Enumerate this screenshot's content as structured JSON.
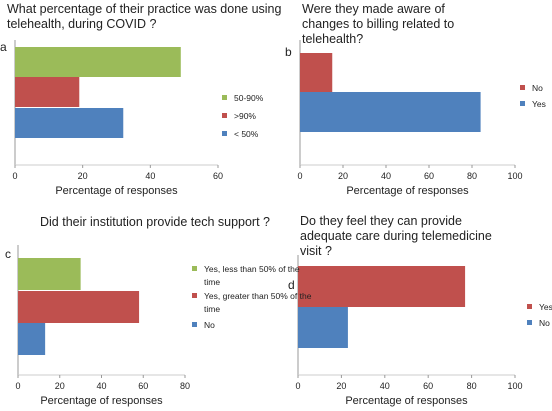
{
  "chart_data": [
    {
      "type": "bar",
      "orientation": "horizontal",
      "panel_label": "a",
      "title": "What percentage of their practice was done using telehealth, during COVID ?",
      "categories": [
        "50-90%",
        ">90%",
        "< 50%"
      ],
      "values": [
        49,
        19,
        32
      ],
      "colors": [
        "#9bbb59",
        "#c0504d",
        "#4f81bd"
      ],
      "xlim": [
        0,
        60
      ],
      "xticks": [
        0,
        20,
        40,
        60
      ],
      "xlabel": "Percentage of responses"
    },
    {
      "type": "bar",
      "orientation": "horizontal",
      "panel_label": "b",
      "title": "Were they made aware of changes to billing related to telehealth?",
      "categories": [
        "No",
        "Yes"
      ],
      "values": [
        15,
        84
      ],
      "colors": [
        "#c0504d",
        "#4f81bd"
      ],
      "xlim": [
        0,
        100
      ],
      "xticks": [
        0,
        20,
        40,
        60,
        80,
        100
      ],
      "xlabel": "Percentage of responses"
    },
    {
      "type": "bar",
      "orientation": "horizontal",
      "panel_label": "c",
      "title": "Did their institution provide tech support ?",
      "categories": [
        "Yes, less than 50% of the time",
        "Yes, greater than 50% of the time",
        "No"
      ],
      "values": [
        30,
        58,
        13
      ],
      "colors": [
        "#9bbb59",
        "#c0504d",
        "#4f81bd"
      ],
      "xlim": [
        0,
        80
      ],
      "xticks": [
        0,
        20,
        40,
        60,
        80
      ],
      "xlabel": "Percentage of responses"
    },
    {
      "type": "bar",
      "orientation": "horizontal",
      "panel_label": "d",
      "title": "Do they feel they can provide adequate care during telemedicine visit ?",
      "categories": [
        "Yes",
        "No"
      ],
      "values": [
        77,
        23
      ],
      "colors": [
        "#c0504d",
        "#4f81bd"
      ],
      "xlim": [
        0,
        100
      ],
      "xticks": [
        0,
        20,
        40,
        60,
        80,
        100
      ],
      "xlabel": "Percentage of responses"
    }
  ]
}
